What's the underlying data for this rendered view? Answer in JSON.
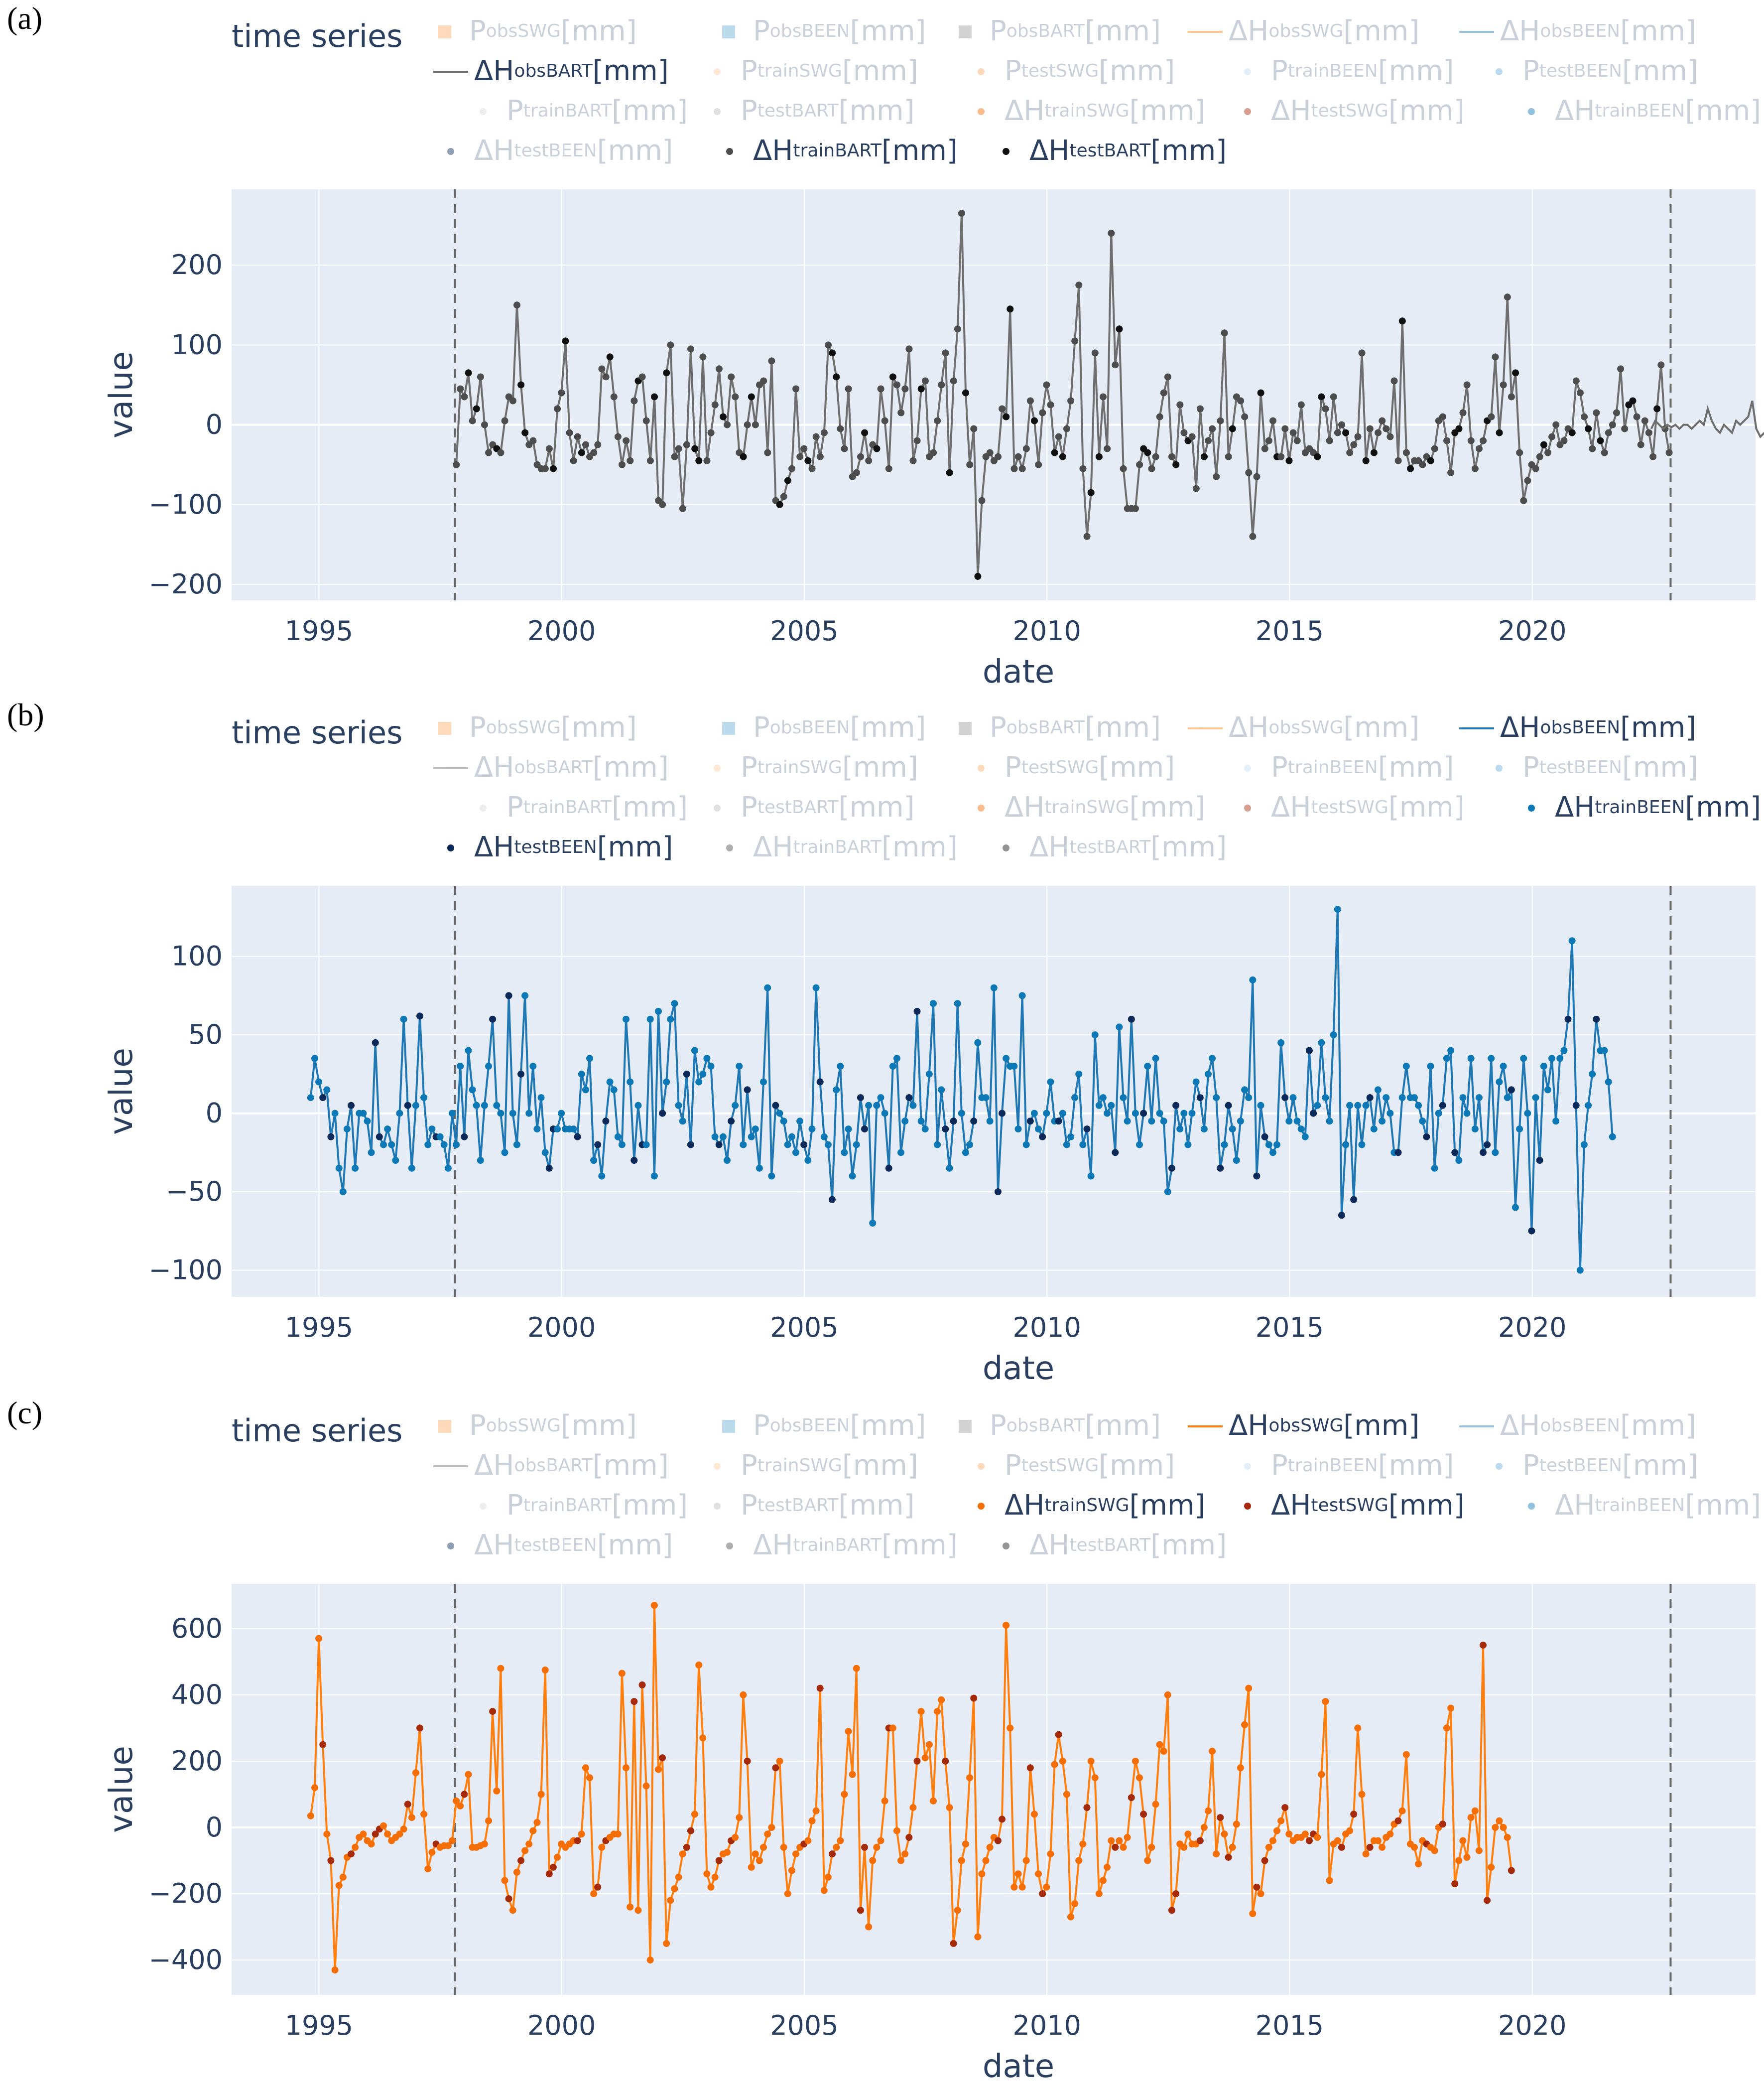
{
  "legend_title": "time series",
  "x_axis_title": "date",
  "y_axis_title": "value",
  "x_ticks": [
    "1995",
    "2000",
    "2005",
    "2010",
    "2015",
    "2020"
  ],
  "colors": {
    "swg_obs": "#ff7f0e",
    "swg_train": "#f46d05",
    "swg_test": "#a52a0a",
    "been_obs": "#1f77b4",
    "been_train": "#0c78b6",
    "been_test": "#0b2a5a",
    "bart_obs": "#6e6e6e",
    "bart_train": "#4d4d4d",
    "bart_test": "#111111",
    "plot_bg": "#e5ecf6",
    "grid": "#ffffff",
    "vline": "#666666"
  },
  "legend_entries": [
    {
      "id": "P_obs_SWG",
      "base": "P",
      "sub": "obs",
      "sup": "SWG",
      "unit": "[mm]",
      "kind": "square",
      "color": "#fdae6b"
    },
    {
      "id": "P_obs_BEEN",
      "base": "P",
      "sub": "obs",
      "sup": "BEEN",
      "unit": "[mm]",
      "kind": "square",
      "color": "#6baed6"
    },
    {
      "id": "P_obs_BART",
      "base": "P",
      "sub": "obs",
      "sup": "BART",
      "unit": "[mm]",
      "kind": "square",
      "color": "#a0a0a0"
    },
    {
      "id": "dH_obs_SWG",
      "base": "ΔH",
      "sub": "obs",
      "sup": "SWG",
      "unit": "[mm]",
      "kind": "line",
      "color": "#ff7f0e"
    },
    {
      "id": "dH_obs_BEEN",
      "base": "ΔH",
      "sub": "obs",
      "sup": "BEEN",
      "unit": "[mm]",
      "kind": "line",
      "color": "#1f77b4"
    },
    {
      "id": "dH_obs_BART",
      "base": "ΔH",
      "sub": "obs",
      "sup": "BART",
      "unit": "[mm]",
      "kind": "line",
      "color": "#6e6e6e"
    },
    {
      "id": "P_train_SWG",
      "base": "P",
      "sub": "train",
      "sup": "SWG",
      "unit": "[mm]",
      "kind": "dot",
      "color": "#fdd0a2"
    },
    {
      "id": "P_test_SWG",
      "base": "P",
      "sub": "test",
      "sup": "SWG",
      "unit": "[mm]",
      "kind": "dot",
      "color": "#fdae6b"
    },
    {
      "id": "P_train_BEEN",
      "base": "P",
      "sub": "train",
      "sup": "BEEN",
      "unit": "[mm]",
      "kind": "dot",
      "color": "#c6dbef"
    },
    {
      "id": "P_test_BEEN",
      "base": "P",
      "sub": "test",
      "sup": "BEEN",
      "unit": "[mm]",
      "kind": "dot",
      "color": "#6baed6"
    },
    {
      "id": "P_train_BART",
      "base": "P",
      "sub": "train",
      "sup": "BART",
      "unit": "[mm]",
      "kind": "dot",
      "color": "#d9d9d9"
    },
    {
      "id": "P_test_BART",
      "base": "P",
      "sub": "test",
      "sup": "BART",
      "unit": "[mm]",
      "kind": "dot",
      "color": "#bdbdbd"
    },
    {
      "id": "dH_train_SWG",
      "base": "ΔH",
      "sub": "train",
      "sup": "SWG",
      "unit": "[mm]",
      "kind": "dot",
      "color": "#f46d05"
    },
    {
      "id": "dH_test_SWG",
      "base": "ΔH",
      "sub": "test",
      "sup": "SWG",
      "unit": "[mm]",
      "kind": "dot",
      "color": "#a52a0a"
    },
    {
      "id": "dH_train_BEEN",
      "base": "ΔH",
      "sub": "train",
      "sup": "BEEN",
      "unit": "[mm]",
      "kind": "dot",
      "color": "#0c78b6"
    },
    {
      "id": "dH_test_BEEN",
      "base": "ΔH",
      "sub": "test",
      "sup": "BEEN",
      "unit": "[mm]",
      "kind": "dot",
      "color": "#0b2a5a"
    },
    {
      "id": "dH_train_BART",
      "base": "ΔH",
      "sub": "train",
      "sup": "BART",
      "unit": "[mm]",
      "kind": "dot",
      "color": "#4d4d4d"
    },
    {
      "id": "dH_test_BART",
      "base": "ΔH",
      "sub": "test",
      "sup": "BART",
      "unit": "[mm]",
      "kind": "dot",
      "color": "#111111"
    }
  ],
  "panels": [
    {
      "label": "(a)",
      "active": [
        "dH_obs_BART",
        "dH_train_BART",
        "dH_test_BART"
      ]
    },
    {
      "label": "(b)",
      "active": [
        "dH_obs_BEEN",
        "dH_train_BEEN",
        "dH_test_BEEN"
      ]
    },
    {
      "label": "(c)",
      "active": [
        "dH_obs_SWG",
        "dH_train_SWG",
        "dH_test_SWG"
      ]
    }
  ],
  "chart_data": [
    {
      "type": "line",
      "station": "BART",
      "xlabel": "date",
      "ylabel": "value",
      "xlim": [
        1993.2,
        2024.6
      ],
      "ylim": [
        -220,
        295
      ],
      "yticks": [
        -200,
        -100,
        0,
        100,
        200
      ],
      "ytick_labels": [
        "−200",
        "−100",
        "0",
        "100",
        "200"
      ],
      "vlines": [
        1997.8,
        2022.85
      ],
      "series_start": 1997.83,
      "step": 0.0833,
      "values": [
        -50,
        45,
        35,
        65,
        5,
        20,
        60,
        0,
        -35,
        -25,
        -30,
        -35,
        5,
        35,
        30,
        150,
        50,
        -10,
        -25,
        -20,
        -50,
        -55,
        -55,
        -30,
        -55,
        20,
        40,
        105,
        -10,
        -45,
        -15,
        -35,
        -25,
        -40,
        -35,
        -25,
        70,
        60,
        85,
        35,
        -15,
        -50,
        -20,
        -45,
        30,
        55,
        60,
        5,
        -45,
        35,
        -95,
        -100,
        65,
        100,
        -40,
        -30,
        -105,
        -25,
        95,
        -30,
        -45,
        85,
        -45,
        -10,
        25,
        70,
        10,
        0,
        60,
        35,
        -35,
        -40,
        0,
        35,
        0,
        50,
        55,
        -35,
        80,
        -95,
        -100,
        -90,
        -70,
        -55,
        45,
        -40,
        -30,
        -45,
        -55,
        -15,
        -40,
        -10,
        100,
        90,
        60,
        -5,
        -30,
        45,
        -65,
        -60,
        -40,
        -10,
        -45,
        -25,
        -30,
        45,
        5,
        -55,
        60,
        50,
        15,
        45,
        95,
        -45,
        -20,
        45,
        55,
        -40,
        -35,
        5,
        50,
        90,
        -60,
        55,
        120,
        265,
        40,
        -50,
        -5,
        -190,
        -95,
        -40,
        -35,
        -45,
        -40,
        20,
        10,
        145,
        -55,
        -40,
        -55,
        -30,
        30,
        5,
        -50,
        15,
        50,
        25,
        -35,
        -15,
        -40,
        -5,
        30,
        105,
        175,
        -55,
        -140,
        -85,
        90,
        -40,
        35,
        -30,
        240,
        75,
        120,
        -55,
        -105,
        -105,
        -105,
        -50,
        -30,
        -35,
        -55,
        -40,
        10,
        40,
        60,
        -40,
        -50,
        25,
        -10,
        -20,
        -15,
        -80,
        20,
        -40,
        -20,
        -5,
        -65,
        5,
        115,
        -40,
        -5,
        35,
        30,
        10,
        -60,
        -140,
        -65,
        40,
        -30,
        -20,
        5,
        -40,
        -40,
        -5,
        -45,
        -10,
        -20,
        25,
        -35,
        -30,
        -35,
        -40,
        35,
        20,
        -20,
        35,
        -10,
        0,
        -10,
        -35,
        -25,
        -15,
        90,
        -45,
        -5,
        -35,
        -10,
        5,
        -5,
        -15,
        55,
        -45,
        130,
        -35,
        -55,
        -45,
        -45,
        -50,
        -40,
        -45,
        -30,
        5,
        10,
        -20,
        -60,
        -10,
        -5,
        15,
        50,
        -20,
        -55,
        -30,
        -20,
        5,
        10,
        85,
        -10,
        50,
        160,
        35,
        65,
        -35,
        -95,
        -70,
        -50,
        -55,
        -40,
        -25,
        -35,
        -15,
        0,
        -25,
        -20,
        -5,
        -10,
        55,
        40,
        10,
        -5,
        -30,
        15,
        -20,
        -35,
        -10,
        0,
        15,
        70,
        -5,
        25,
        30,
        10,
        -25,
        5,
        -10,
        -40,
        20,
        75,
        -5,
        -35
      ],
      "tail_start": 2022.45,
      "tail_values": [
        -5,
        5,
        0,
        -5,
        0,
        -3,
        0,
        -5,
        0,
        0,
        -5,
        0,
        5,
        0,
        20,
        5,
        -5,
        -10,
        0,
        -5,
        -10,
        5,
        0,
        5,
        10,
        30,
        -5,
        -15,
        -10
      ]
    },
    {
      "type": "line",
      "station": "BEEN",
      "xlabel": "date",
      "ylabel": "value",
      "xlim": [
        1993.2,
        2024.6
      ],
      "ylim": [
        -117,
        145
      ],
      "yticks": [
        -100,
        -50,
        0,
        50,
        100
      ],
      "ytick_labels": [
        "−100",
        "−50",
        "0",
        "50",
        "100"
      ],
      "vlines": [
        1997.8,
        2022.85
      ],
      "series_start": 1994.83,
      "step": 0.0833,
      "values": [
        10,
        35,
        20,
        10,
        15,
        -15,
        0,
        -35,
        -50,
        -10,
        5,
        -35,
        0,
        0,
        -5,
        -25,
        45,
        -15,
        -20,
        -10,
        -20,
        -30,
        0,
        60,
        5,
        -35,
        5,
        62,
        10,
        -20,
        -10,
        -15,
        -15,
        -20,
        -35,
        0,
        -20,
        30,
        -15,
        40,
        15,
        5,
        -30,
        5,
        30,
        60,
        5,
        0,
        -25,
        75,
        0,
        -20,
        25,
        75,
        0,
        30,
        -10,
        10,
        -25,
        -35,
        -10,
        -10,
        0,
        -10,
        -10,
        -10,
        -15,
        25,
        15,
        35,
        -30,
        -20,
        -40,
        -5,
        20,
        15,
        -15,
        -20,
        60,
        20,
        -30,
        5,
        -20,
        -20,
        60,
        -40,
        65,
        0,
        20,
        60,
        70,
        5,
        -5,
        25,
        -20,
        40,
        20,
        25,
        35,
        30,
        -15,
        -20,
        -15,
        -30,
        -5,
        5,
        30,
        -20,
        15,
        -15,
        -10,
        -35,
        20,
        80,
        -40,
        5,
        0,
        -5,
        -20,
        -15,
        -25,
        -5,
        -20,
        -30,
        -10,
        80,
        20,
        -15,
        -20,
        -55,
        15,
        30,
        -25,
        -10,
        -40,
        -20,
        10,
        -10,
        5,
        -70,
        5,
        10,
        0,
        -35,
        30,
        35,
        -25,
        -5,
        10,
        5,
        65,
        -5,
        -10,
        25,
        70,
        -20,
        15,
        -10,
        -35,
        -5,
        70,
        0,
        -25,
        -20,
        -5,
        45,
        10,
        10,
        -5,
        80,
        -50,
        0,
        35,
        30,
        30,
        -10,
        75,
        -20,
        -5,
        0,
        -10,
        -15,
        0,
        20,
        -5,
        -5,
        0,
        -20,
        -15,
        10,
        25,
        -20,
        -10,
        -40,
        50,
        5,
        10,
        0,
        5,
        -25,
        55,
        10,
        -5,
        60,
        0,
        -20,
        0,
        30,
        -5,
        35,
        0,
        -5,
        -50,
        -35,
        5,
        -10,
        0,
        -20,
        0,
        20,
        10,
        -10,
        25,
        35,
        10,
        -35,
        -20,
        5,
        -10,
        -30,
        -5,
        15,
        10,
        85,
        -40,
        5,
        -15,
        -20,
        -25,
        -20,
        45,
        10,
        -5,
        10,
        -5,
        -10,
        -15,
        40,
        0,
        5,
        45,
        10,
        -5,
        50,
        130,
        -65,
        -20,
        5,
        -55,
        5,
        -20,
        5,
        10,
        -10,
        15,
        -5,
        10,
        0,
        -25,
        -25,
        10,
        30,
        10,
        10,
        5,
        -5,
        -15,
        30,
        -35,
        0,
        5,
        35,
        40,
        -25,
        -30,
        10,
        0,
        35,
        -10,
        10,
        -25,
        -20,
        35,
        -25,
        20,
        30,
        10,
        15,
        -60,
        -10,
        35,
        0,
        -75,
        10,
        -30,
        30,
        15,
        35,
        -5,
        35,
        40,
        60,
        110,
        5,
        -100,
        -20,
        5,
        25,
        60,
        40,
        40,
        20,
        -15
      ],
      "tail_start": 2022.45,
      "tail_values": []
    },
    {
      "type": "line",
      "station": "SWG",
      "xlabel": "date",
      "ylabel": "value",
      "xlim": [
        1993.2,
        2024.6
      ],
      "ylim": [
        -505,
        735
      ],
      "yticks": [
        -400,
        -200,
        0,
        200,
        400,
        600
      ],
      "ytick_labels": [
        "−400",
        "−200",
        "0",
        "200",
        "400",
        "600"
      ],
      "vlines": [
        1997.8,
        2022.85
      ],
      "series_start": 1994.83,
      "step": 0.0833,
      "values": [
        35,
        120,
        570,
        250,
        -20,
        -100,
        -430,
        -175,
        -150,
        -90,
        -80,
        -60,
        -30,
        -20,
        -40,
        -50,
        -20,
        -5,
        5,
        -20,
        -40,
        -30,
        -20,
        -5,
        70,
        30,
        165,
        300,
        40,
        -125,
        -75,
        -50,
        -60,
        -55,
        -55,
        -40,
        80,
        65,
        100,
        160,
        -60,
        -60,
        -55,
        -50,
        20,
        350,
        110,
        480,
        -160,
        -215,
        -250,
        -135,
        -100,
        -70,
        -50,
        -10,
        15,
        100,
        475,
        -140,
        -120,
        -90,
        -50,
        -60,
        -50,
        -40,
        -40,
        -20,
        180,
        150,
        -200,
        -180,
        -60,
        -40,
        -30,
        -20,
        -20,
        465,
        180,
        -240,
        380,
        -250,
        430,
        125,
        -400,
        670,
        175,
        210,
        -350,
        -220,
        -185,
        -150,
        -80,
        -60,
        -10,
        40,
        490,
        270,
        -140,
        -180,
        -150,
        -100,
        -80,
        -75,
        -40,
        -30,
        30,
        400,
        200,
        -120,
        -80,
        -100,
        -60,
        -20,
        0,
        180,
        200,
        -60,
        -200,
        -130,
        -80,
        -60,
        -50,
        -40,
        20,
        50,
        420,
        -190,
        -150,
        -80,
        -60,
        -40,
        100,
        290,
        160,
        480,
        -250,
        -60,
        -300,
        -100,
        -60,
        -40,
        80,
        300,
        300,
        -10,
        -100,
        -80,
        -30,
        60,
        200,
        350,
        210,
        250,
        80,
        350,
        385,
        200,
        60,
        -350,
        -250,
        -100,
        -50,
        150,
        390,
        -330,
        -140,
        -100,
        -60,
        -30,
        -40,
        25,
        610,
        300,
        -180,
        -140,
        -180,
        -100,
        180,
        40,
        -140,
        -200,
        -180,
        -80,
        190,
        280,
        200,
        100,
        -270,
        -230,
        -100,
        -50,
        60,
        200,
        150,
        -200,
        -160,
        -120,
        -40,
        -60,
        -40,
        -60,
        -30,
        90,
        200,
        150,
        40,
        -100,
        -60,
        70,
        250,
        230,
        400,
        -250,
        -200,
        -50,
        -60,
        -20,
        -50,
        -50,
        -40,
        0,
        50,
        230,
        -80,
        30,
        -20,
        -90,
        -60,
        10,
        180,
        310,
        420,
        -260,
        -180,
        -200,
        -100,
        -60,
        -40,
        -10,
        20,
        60,
        -20,
        -40,
        -30,
        -30,
        -20,
        -40,
        -20,
        -30,
        160,
        380,
        -160,
        -50,
        -40,
        -60,
        -20,
        -10,
        40,
        300,
        100,
        -80,
        -60,
        -40,
        -40,
        -60,
        -30,
        -20,
        10,
        20,
        50,
        220,
        -50,
        -60,
        -110,
        -40,
        -50,
        -60,
        -70,
        0,
        10,
        300,
        360,
        -170,
        -100,
        -40,
        -90,
        30,
        50,
        -70,
        550,
        -220,
        -120,
        0,
        20,
        0,
        -30,
        -130
      ]
    }
  ]
}
